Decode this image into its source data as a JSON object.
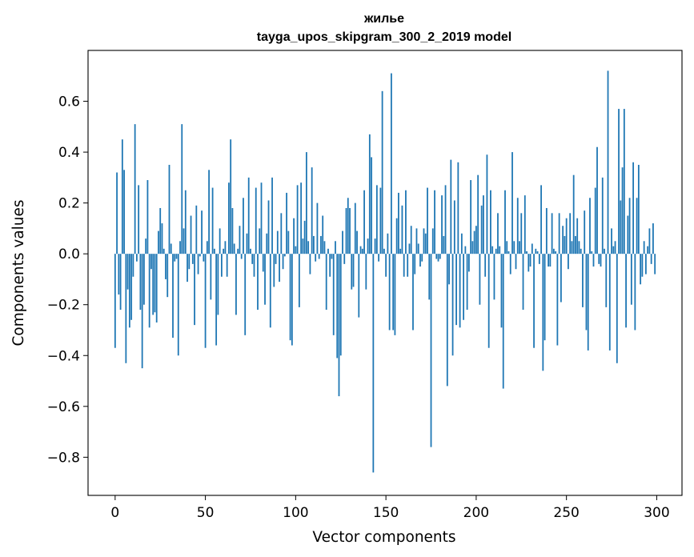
{
  "chart_data": {
    "type": "bar",
    "title": "жилье",
    "subtitle": "tayga_upos_skipgram_300_2_2019 model",
    "xlabel": "Vector components",
    "ylabel": "Components values",
    "xlim": [
      -15,
      314
    ],
    "ylim": [
      -0.95,
      0.8
    ],
    "xticks": [
      0,
      50,
      100,
      150,
      200,
      250,
      300
    ],
    "xtick_labels": [
      "0",
      "50",
      "100",
      "150",
      "200",
      "250",
      "300"
    ],
    "yticks": [
      -0.8,
      -0.6,
      -0.4,
      -0.2,
      0.0,
      0.2,
      0.4,
      0.6
    ],
    "ytick_labels": [
      "−0.8",
      "−0.6",
      "−0.4",
      "−0.2",
      "0.0",
      "0.2",
      "0.4",
      "0.6"
    ],
    "grid": false,
    "bar_color": "#1f77b4",
    "x": "0..299 (component index)",
    "values": [
      -0.37,
      0.32,
      -0.16,
      -0.22,
      0.45,
      0.33,
      -0.43,
      -0.14,
      -0.29,
      -0.26,
      -0.09,
      0.51,
      -0.03,
      0.27,
      -0.22,
      -0.45,
      -0.2,
      0.06,
      0.29,
      -0.29,
      -0.06,
      -0.24,
      -0.23,
      -0.27,
      0.09,
      0.18,
      0.12,
      0.02,
      -0.1,
      -0.17,
      0.35,
      0.04,
      -0.33,
      -0.03,
      -0.02,
      -0.4,
      0.05,
      0.51,
      0.1,
      0.25,
      -0.11,
      -0.06,
      0.15,
      -0.04,
      -0.28,
      0.19,
      -0.08,
      -0.01,
      0.17,
      -0.03,
      -0.37,
      0.05,
      0.33,
      -0.18,
      0.26,
      0.02,
      -0.36,
      -0.24,
      0.1,
      -0.09,
      0.02,
      0.05,
      -0.09,
      0.28,
      0.45,
      0.18,
      0.04,
      -0.24,
      0.02,
      0.11,
      -0.02,
      0.22,
      -0.32,
      0.08,
      0.3,
      0.02,
      -0.04,
      -0.09,
      0.26,
      -0.22,
      0.1,
      0.28,
      -0.07,
      -0.2,
      0.08,
      0.21,
      -0.29,
      0.3,
      -0.13,
      -0.04,
      0.09,
      -0.11,
      0.16,
      -0.06,
      -0.01,
      0.24,
      0.09,
      -0.34,
      -0.36,
      0.14,
      0.03,
      0.27,
      -0.21,
      0.28,
      0.06,
      0.13,
      0.4,
      0.05,
      -0.08,
      0.34,
      0.07,
      -0.03,
      0.2,
      -0.02,
      0.07,
      0.15,
      0.05,
      -0.22,
      0.02,
      -0.09,
      -0.02,
      -0.32,
      0.05,
      -0.41,
      -0.56,
      -0.4,
      0.09,
      -0.04,
      0.18,
      0.22,
      0.18,
      -0.14,
      -0.13,
      0.2,
      0.09,
      -0.25,
      0.03,
      0.02,
      0.25,
      -0.14,
      0.06,
      0.47,
      0.38,
      -0.86,
      0.06,
      0.27,
      -0.03,
      0.26,
      0.64,
      0.02,
      -0.09,
      0.08,
      -0.3,
      0.71,
      -0.3,
      -0.32,
      0.14,
      0.24,
      0.02,
      0.19,
      -0.09,
      0.25,
      -0.09,
      0.04,
      0.11,
      -0.3,
      -0.08,
      0.1,
      0.04,
      -0.05,
      -0.03,
      0.1,
      0.08,
      0.26,
      -0.18,
      -0.76,
      0.1,
      0.25,
      -0.02,
      -0.03,
      -0.02,
      0.23,
      0.07,
      0.27,
      -0.52,
      -0.12,
      0.37,
      -0.4,
      0.21,
      -0.28,
      0.36,
      -0.29,
      0.08,
      -0.26,
      0.03,
      -0.22,
      -0.07,
      0.29,
      0.05,
      0.09,
      0.11,
      0.31,
      -0.2,
      0.19,
      0.23,
      -0.09,
      0.39,
      -0.37,
      0.25,
      0.03,
      -0.18,
      0.02,
      0.16,
      0.03,
      -0.29,
      -0.53,
      0.25,
      0.05,
      0.01,
      -0.08,
      0.4,
      0.05,
      -0.06,
      0.22,
      0.05,
      0.16,
      -0.22,
      0.23,
      0.01,
      -0.07,
      -0.05,
      0.04,
      -0.37,
      0.02,
      0.01,
      -0.04,
      0.27,
      -0.46,
      -0.34,
      0.18,
      -0.05,
      -0.05,
      0.16,
      0.02,
      0.01,
      -0.36,
      0.16,
      -0.19,
      0.11,
      0.07,
      0.14,
      -0.06,
      0.16,
      0.05,
      0.31,
      0.07,
      0.14,
      0.05,
      0.02,
      -0.21,
      0.17,
      -0.3,
      -0.38,
      0.22,
      0.01,
      -0.05,
      0.26,
      0.42,
      -0.04,
      -0.05,
      0.3,
      0.02,
      -0.21,
      0.72,
      -0.38,
      0.1,
      0.03,
      0.05,
      -0.43,
      0.57,
      0.21,
      0.34,
      0.57,
      -0.29,
      0.15,
      0.22,
      -0.2,
      0.36,
      -0.3,
      0.22,
      0.35,
      -0.12,
      -0.09,
      0.05,
      -0.08,
      0.03,
      0.1,
      -0.04,
      0.12,
      -0.08
    ]
  }
}
